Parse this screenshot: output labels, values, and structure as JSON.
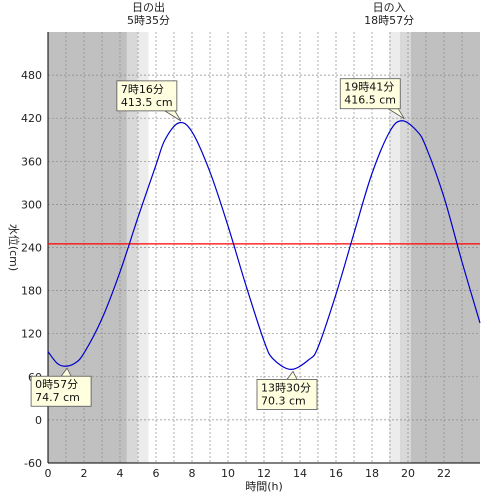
{
  "chart_data": {
    "type": "line",
    "xlabel": "時間(h)",
    "ylabel": "水位(cm)",
    "xlim": [
      0,
      24
    ],
    "ylim": [
      -60,
      540
    ],
    "x_ticks": [
      0,
      2,
      4,
      6,
      8,
      10,
      12,
      14,
      16,
      18,
      20,
      22
    ],
    "y_ticks": [
      -60,
      0,
      60,
      120,
      180,
      240,
      300,
      360,
      420,
      480
    ],
    "grid": true,
    "reference_line": {
      "value": 245,
      "color": "#ff0000"
    },
    "series": [
      {
        "color": "#0000cc",
        "x": [
          0,
          0.5,
          0.95,
          1.5,
          2,
          3,
          4,
          5,
          6,
          6.5,
          7.27,
          8,
          9,
          10,
          11,
          12,
          12.5,
          13.5,
          14.5,
          15,
          16,
          17,
          18,
          19,
          19.68,
          20.5,
          21,
          22,
          23,
          24
        ],
        "values": [
          95,
          79,
          74.7,
          79,
          93,
          141,
          206,
          282,
          355,
          390,
          413.5,
          401,
          345,
          270,
          187,
          110,
          85,
          70.3,
          84,
          101,
          175,
          260,
          343,
          402,
          416.5,
          402,
          380,
          310,
          220,
          135
        ]
      }
    ],
    "annotations": [
      {
        "line1": "7時16分",
        "line2": "413.5 cm",
        "x": 7.27,
        "y": 413.5
      },
      {
        "line1": "19時41分",
        "line2": "416.5 cm",
        "x": 19.68,
        "y": 416.5
      },
      {
        "line1": "0時57分",
        "line2": "74.7 cm",
        "x": 0.95,
        "y": 74.7
      },
      {
        "line1": "13時30分",
        "line2": "70.3 cm",
        "x": 13.5,
        "y": 70.3
      }
    ],
    "sun_events": [
      {
        "label": "日の出",
        "time_text": "5時35分",
        "time": 5.583
      },
      {
        "label": "日の入",
        "time_text": "18時57分",
        "time": 18.95
      }
    ]
  },
  "colors": {
    "night": "#c0c0c0",
    "twilight_dark": "#d8d8d8",
    "twilight_light": "#ececec",
    "day": "#ffffff",
    "curve": "#0000cc",
    "reference": "#ff0000",
    "callout_fill": "#ffffe0"
  }
}
